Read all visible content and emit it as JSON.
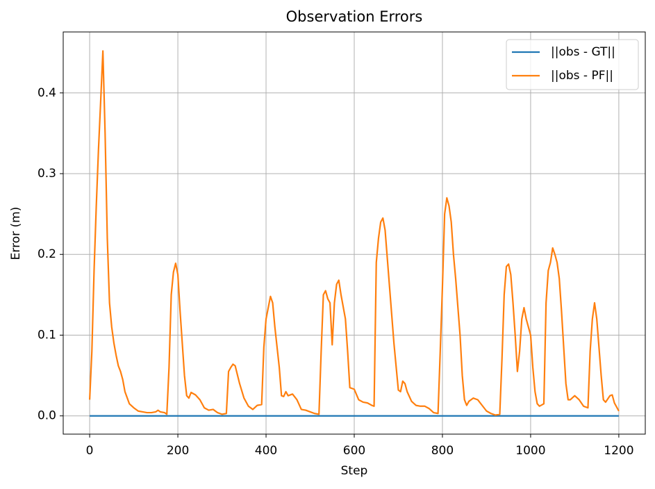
{
  "chart_data": {
    "type": "line",
    "title": "Observation Errors",
    "xlabel": "Step",
    "ylabel": "Error (m)",
    "x": [
      0,
      5,
      10,
      15,
      20,
      25,
      30,
      35,
      40,
      45,
      50,
      55,
      60,
      65,
      70,
      75,
      80,
      90,
      100,
      110,
      120,
      130,
      140,
      150,
      155,
      160,
      170,
      175,
      180,
      185,
      190,
      195,
      200,
      205,
      210,
      215,
      220,
      225,
      230,
      240,
      250,
      260,
      270,
      280,
      290,
      300,
      310,
      315,
      320,
      325,
      330,
      340,
      350,
      360,
      370,
      380,
      390,
      395,
      400,
      410,
      415,
      420,
      430,
      435,
      440,
      445,
      450,
      460,
      470,
      480,
      490,
      500,
      510,
      520,
      525,
      530,
      535,
      540,
      545,
      550,
      555,
      560,
      565,
      570,
      580,
      585,
      590,
      600,
      610,
      620,
      630,
      640,
      645,
      650,
      655,
      660,
      665,
      670,
      680,
      690,
      700,
      705,
      710,
      715,
      720,
      730,
      740,
      750,
      760,
      770,
      780,
      790,
      795,
      800,
      805,
      810,
      815,
      820,
      825,
      830,
      840,
      845,
      850,
      855,
      860,
      870,
      880,
      890,
      900,
      910,
      920,
      930,
      935,
      940,
      945,
      950,
      955,
      960,
      965,
      970,
      975,
      980,
      985,
      990,
      1000,
      1005,
      1010,
      1015,
      1020,
      1030,
      1035,
      1040,
      1045,
      1050,
      1055,
      1060,
      1065,
      1070,
      1080,
      1085,
      1090,
      1100,
      1110,
      1120,
      1130,
      1135,
      1140,
      1145,
      1150,
      1160,
      1165,
      1170,
      1180,
      1185,
      1190,
      1200
    ],
    "series": [
      {
        "name": "||obs - GT||",
        "color": "#1f77b4",
        "values": [
          0,
          0,
          0,
          0,
          0,
          0,
          0,
          0,
          0,
          0,
          0,
          0,
          0,
          0,
          0,
          0,
          0,
          0,
          0,
          0,
          0,
          0,
          0,
          0,
          0,
          0,
          0,
          0,
          0,
          0,
          0,
          0,
          0,
          0,
          0,
          0,
          0,
          0,
          0,
          0,
          0,
          0,
          0,
          0,
          0,
          0,
          0,
          0,
          0,
          0,
          0,
          0,
          0,
          0,
          0,
          0,
          0,
          0,
          0,
          0,
          0,
          0,
          0,
          0,
          0,
          0,
          0,
          0,
          0,
          0,
          0,
          0,
          0,
          0,
          0,
          0,
          0,
          0,
          0,
          0,
          0,
          0,
          0,
          0,
          0,
          0,
          0,
          0,
          0,
          0,
          0,
          0,
          0,
          0,
          0,
          0,
          0,
          0,
          0,
          0,
          0,
          0,
          0,
          0,
          0,
          0,
          0,
          0,
          0,
          0,
          0,
          0,
          0,
          0,
          0,
          0,
          0,
          0,
          0,
          0,
          0,
          0,
          0,
          0,
          0,
          0,
          0,
          0,
          0,
          0,
          0,
          0,
          0,
          0,
          0,
          0,
          0,
          0,
          0,
          0,
          0,
          0,
          0,
          0,
          0,
          0,
          0,
          0,
          0,
          0,
          0,
          0,
          0,
          0,
          0,
          0,
          0,
          0,
          0,
          0,
          0,
          0,
          0,
          0,
          0,
          0,
          0,
          0,
          0,
          0,
          0,
          0,
          0,
          0,
          0,
          0
        ]
      },
      {
        "name": "||obs - PF||",
        "color": "#ff7f0e",
        "values": [
          0.02,
          0.08,
          0.18,
          0.26,
          0.33,
          0.39,
          0.452,
          0.35,
          0.22,
          0.14,
          0.11,
          0.09,
          0.075,
          0.062,
          0.055,
          0.045,
          0.03,
          0.015,
          0.01,
          0.006,
          0.005,
          0.004,
          0.004,
          0.005,
          0.007,
          0.005,
          0.004,
          0.002,
          0.06,
          0.15,
          0.178,
          0.189,
          0.175,
          0.13,
          0.09,
          0.05,
          0.025,
          0.022,
          0.029,
          0.026,
          0.02,
          0.01,
          0.007,
          0.008,
          0.004,
          0.002,
          0.003,
          0.055,
          0.06,
          0.064,
          0.062,
          0.04,
          0.022,
          0.012,
          0.008,
          0.013,
          0.014,
          0.085,
          0.12,
          0.148,
          0.14,
          0.11,
          0.06,
          0.025,
          0.024,
          0.03,
          0.025,
          0.027,
          0.02,
          0.008,
          0.007,
          0.005,
          0.003,
          0.002,
          0.08,
          0.15,
          0.155,
          0.145,
          0.14,
          0.088,
          0.14,
          0.163,
          0.168,
          0.15,
          0.12,
          0.08,
          0.035,
          0.033,
          0.02,
          0.017,
          0.016,
          0.013,
          0.012,
          0.19,
          0.22,
          0.24,
          0.245,
          0.23,
          0.16,
          0.09,
          0.032,
          0.03,
          0.043,
          0.04,
          0.03,
          0.018,
          0.013,
          0.012,
          0.012,
          0.009,
          0.004,
          0.003,
          0.08,
          0.16,
          0.25,
          0.27,
          0.26,
          0.24,
          0.2,
          0.17,
          0.1,
          0.05,
          0.02,
          0.013,
          0.018,
          0.022,
          0.02,
          0.013,
          0.006,
          0.003,
          0.001,
          0.002,
          0.07,
          0.15,
          0.185,
          0.188,
          0.175,
          0.14,
          0.1,
          0.055,
          0.08,
          0.12,
          0.134,
          0.12,
          0.1,
          0.06,
          0.03,
          0.015,
          0.012,
          0.015,
          0.14,
          0.18,
          0.19,
          0.208,
          0.2,
          0.19,
          0.17,
          0.13,
          0.04,
          0.02,
          0.02,
          0.025,
          0.02,
          0.012,
          0.01,
          0.08,
          0.12,
          0.14,
          0.12,
          0.05,
          0.02,
          0.017,
          0.025,
          0.026,
          0.016,
          0.006
        ]
      }
    ],
    "xlim": [
      -60,
      1260
    ],
    "ylim": [
      -0.0226,
      0.4755
    ],
    "xticks": [
      0,
      200,
      400,
      600,
      800,
      1000,
      1200
    ],
    "yticks": [
      {
        "value": 0,
        "label": "0.0"
      },
      0.1,
      0.2,
      0.3,
      0.4
    ],
    "grid": true,
    "legend": "upper right"
  }
}
